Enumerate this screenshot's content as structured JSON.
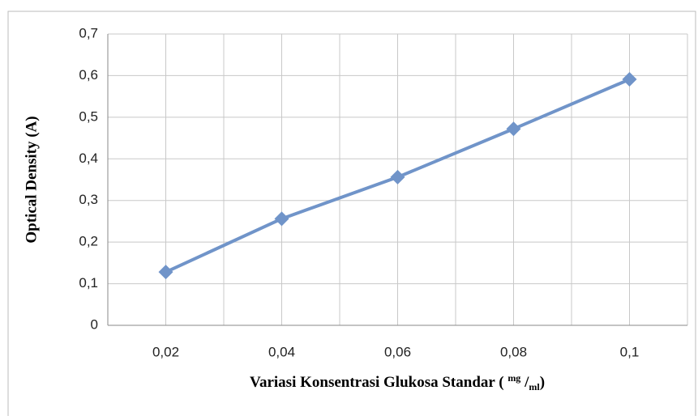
{
  "chart_data": {
    "type": "line",
    "x_label": "Variasi Konsentrasi Glukosa Standar (",
    "x_label_unit_num": "mg",
    "x_label_sep": "/",
    "x_label_unit_den": "ml",
    "x_label_close": ")",
    "y_label": "Optical Density (A)",
    "categories": [
      "0,02",
      "0,04",
      "0,06",
      "0,08",
      "0,1"
    ],
    "series": [
      {
        "name": "Optical Density (A)",
        "color": "#7094c9",
        "values": [
          0.128,
          0.256,
          0.356,
          0.472,
          0.591
        ]
      }
    ],
    "ylim": [
      0,
      0.7
    ],
    "yticks": [
      0,
      {
        "value": 0.1,
        "label": "0,1"
      },
      {
        "value": 0.2,
        "label": "0,2"
      },
      {
        "value": 0.3,
        "label": "0,3"
      },
      {
        "value": 0.4,
        "label": "0,4"
      },
      {
        "value": 0.5,
        "label": "0,5"
      },
      {
        "value": 0.6,
        "label": "0,6"
      },
      {
        "value": 0.7,
        "label": "0,7"
      }
    ],
    "grid": true
  }
}
